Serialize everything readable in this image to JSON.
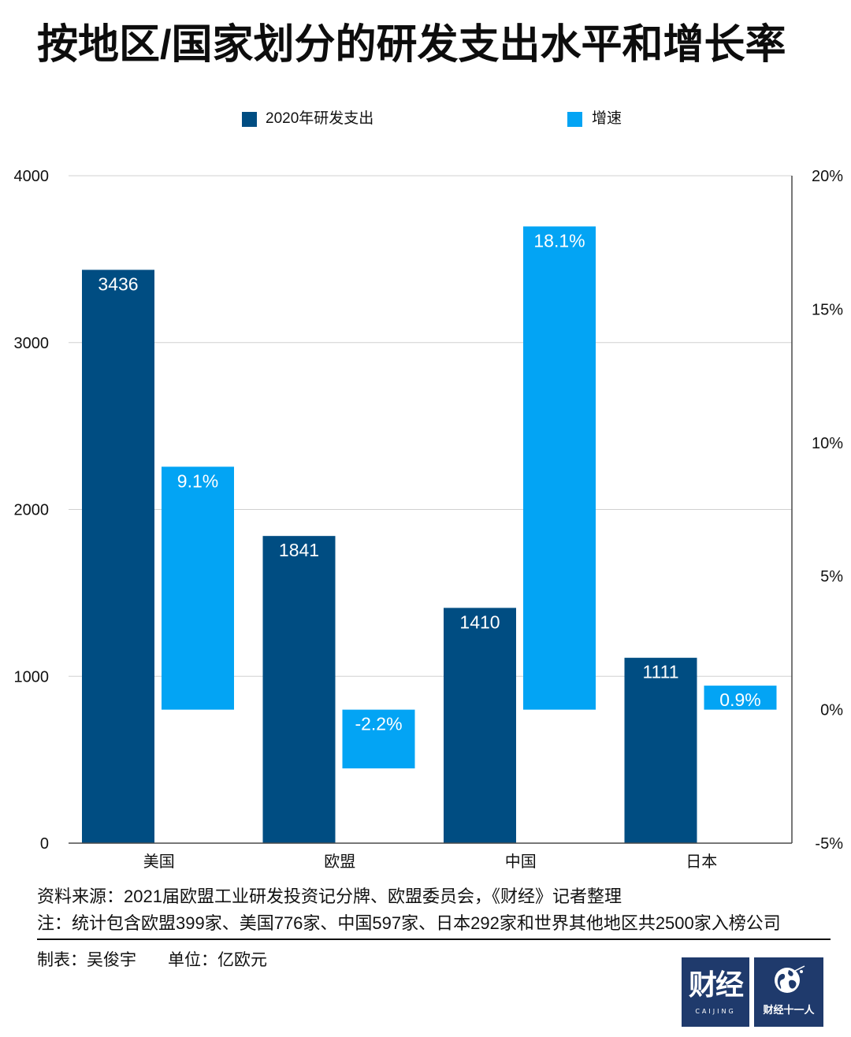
{
  "chart_data": {
    "type": "bar",
    "title": "按地区/国家划分的研发支出水平和增长率",
    "categories": [
      "美国",
      "欧盟",
      "中国",
      "日本"
    ],
    "series": [
      {
        "name": "2020年研发支出",
        "values": [
          3436,
          1841,
          1410,
          1111
        ],
        "axis": "left",
        "color": "#004d82"
      },
      {
        "name": "增速",
        "values": [
          9.1,
          -2.2,
          18.1,
          0.9
        ],
        "unit": "%",
        "axis": "right",
        "color": "#03a4f4"
      }
    ],
    "y_left": {
      "ylim": [
        0,
        4000
      ],
      "ticks": [
        0,
        1000,
        2000,
        3000,
        4000
      ]
    },
    "y_right": {
      "ylim": [
        -5,
        20
      ],
      "ticks": [
        -5,
        0,
        5,
        10,
        15,
        20
      ],
      "unit": "%"
    },
    "grid": true,
    "legend": "top",
    "data_labels": true
  },
  "footer": {
    "source": "资料来源：2021届欧盟工业研发投资记分牌、欧盟委员会，《财经》记者整理",
    "note": "注：统计包含欧盟399家、美国776家、中国597家、日本292家和世界其他地区共2500家入榜公司",
    "maker": "制表：吴俊宇",
    "unit": "单位：亿欧元"
  },
  "logos": {
    "caijing": {
      "text": "财经",
      "sub": "CAIJING",
      "color": "#1f3a6c"
    },
    "caijing11": {
      "text": "财经十一人",
      "color": "#1f3a6c",
      "icon": "globe-icon"
    }
  }
}
